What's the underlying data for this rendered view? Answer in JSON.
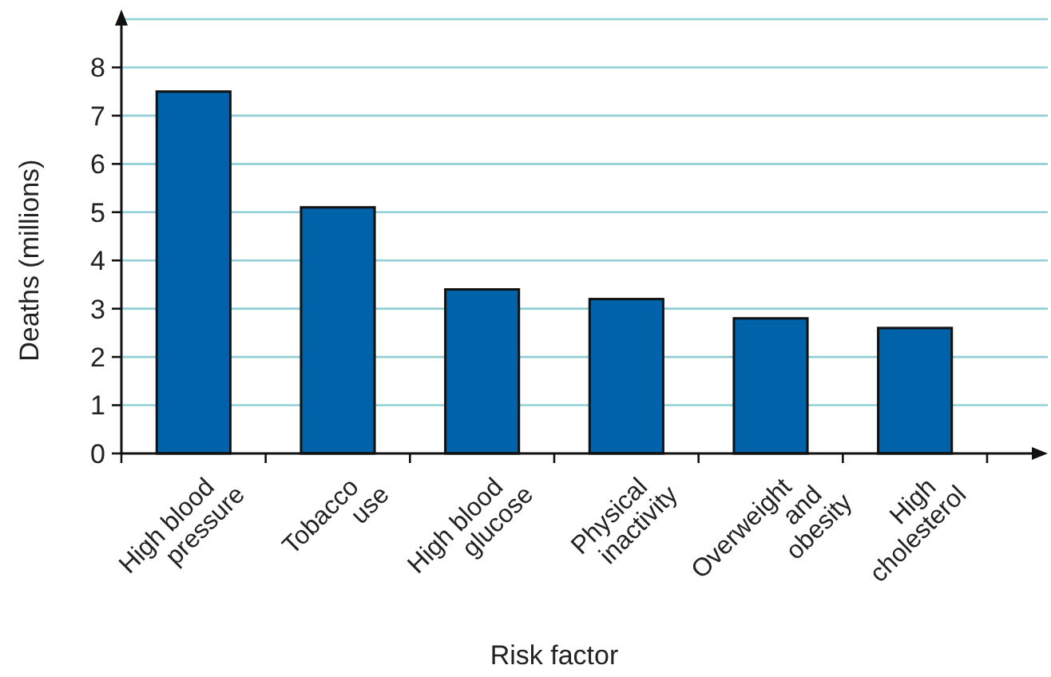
{
  "chart_data": {
    "type": "bar",
    "xlabel": "Risk factor",
    "ylabel": "Deaths (millions)",
    "categories": [
      "High blood pressure",
      "Tobacco use",
      "High blood glucose",
      "Physical inactivity",
      "Overweight and obesity",
      "High cholesterol"
    ],
    "values": [
      7.5,
      5.1,
      3.4,
      3.2,
      2.8,
      2.6
    ],
    "color": "#0062a8",
    "ylim": [
      0,
      9
    ],
    "yticks": [
      0,
      1,
      2,
      3,
      4,
      5,
      6,
      7,
      8,
      {
        "value": 9,
        "label": null
      }
    ],
    "grid": "y"
  }
}
